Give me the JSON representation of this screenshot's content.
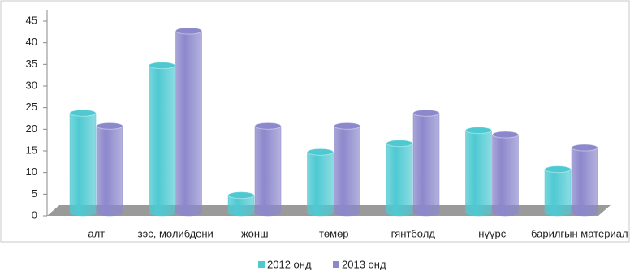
{
  "chart_data": {
    "type": "bar",
    "categories": [
      "алт",
      "зэс, молибдени",
      "жонш",
      "төмөр",
      "гянтболд",
      "нүүрс",
      "барилгын материал"
    ],
    "series": [
      {
        "name": "2012 онд",
        "color": "#4ec9d2",
        "values": [
          23,
          34,
          4,
          14,
          16,
          19,
          10
        ]
      },
      {
        "name": "2013 онд",
        "color": "#8c88cc",
        "values": [
          20,
          42,
          20,
          20,
          23,
          18,
          15
        ]
      }
    ],
    "ylim": [
      0,
      45
    ],
    "yticks": [
      0,
      5,
      10,
      15,
      20,
      25,
      30,
      35,
      40,
      45
    ]
  }
}
